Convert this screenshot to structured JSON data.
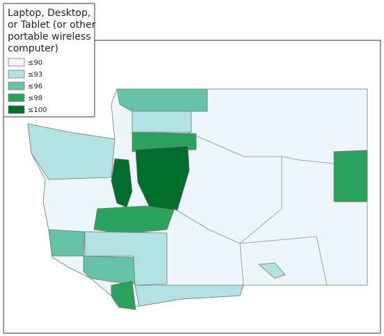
{
  "legend": {
    "title_lines": [
      "Laptop, Desktop,",
      "or Tablet (or other",
      "portable wireless",
      "computer)"
    ],
    "items": [
      {
        "label": "≤90",
        "color": "#edf7f9"
      },
      {
        "label": "≤93",
        "color": "#b2e2e2"
      },
      {
        "label": "≤96",
        "color": "#66c2a4"
      },
      {
        "label": "≤98",
        "color": "#2ca25f"
      },
      {
        "label": "≤100",
        "color": "#006d2c"
      }
    ]
  }
}
